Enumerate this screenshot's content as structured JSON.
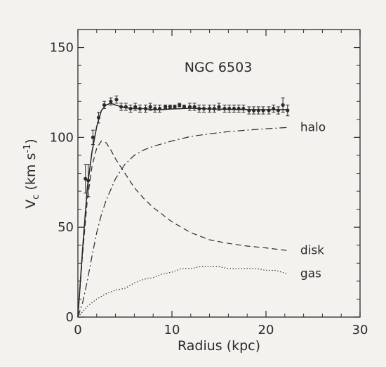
{
  "colors": {
    "ink": "#2b2b2b",
    "background": "#f4f2ef"
  },
  "chart_data": {
    "type": "line",
    "title": "NGC 6503",
    "xlabel": "Radius (kpc)",
    "ylabel": {
      "v": "V",
      "sub": "c",
      "units": " (km s",
      "exp": "-1",
      "close": ")"
    },
    "xlim": [
      0,
      30
    ],
    "ylim": [
      0,
      160
    ],
    "xticks": [
      0,
      10,
      20,
      30
    ],
    "yticks": [
      0,
      50,
      100,
      150
    ],
    "grid": false,
    "observed": {
      "x": [
        0.8,
        1.1,
        1.6,
        2.2,
        2.8,
        3.5,
        4.1,
        4.6,
        5.1,
        5.6,
        6.1,
        6.6,
        7.2,
        7.7,
        8.2,
        8.7,
        9.3,
        9.8,
        10.3,
        10.8,
        11.3,
        11.9,
        12.4,
        12.9,
        13.4,
        14.0,
        14.5,
        15.0,
        15.6,
        16.1,
        16.6,
        17.1,
        17.6,
        18.2,
        18.7,
        19.2,
        19.7,
        20.3,
        20.8,
        21.3,
        21.8,
        22.3
      ],
      "y": [
        77,
        76,
        100,
        111,
        118,
        120,
        121,
        117,
        117,
        116,
        117,
        116,
        116,
        117,
        116,
        116,
        117,
        117,
        117,
        118,
        117,
        117,
        117,
        116,
        116,
        116,
        116,
        117,
        116,
        116,
        116,
        116,
        116,
        115,
        115,
        115,
        115,
        115,
        116,
        115,
        118,
        115
      ],
      "err": [
        8,
        9,
        4,
        3,
        2,
        2,
        2,
        2,
        2,
        2,
        2,
        2,
        2,
        2,
        2,
        2,
        1,
        1,
        1,
        1,
        1,
        2,
        2,
        2,
        2,
        2,
        2,
        2,
        2,
        2,
        2,
        2,
        2,
        2,
        2,
        2,
        2,
        2,
        2,
        2,
        4,
        3
      ]
    },
    "series": [
      {
        "name": "total",
        "style": "solid",
        "x": [
          0,
          0.5,
          1,
          1.5,
          2,
          2.5,
          3,
          3.5,
          4,
          5,
          6,
          7,
          8,
          9,
          10,
          11,
          12,
          13,
          14,
          15,
          16,
          17,
          18,
          19,
          20,
          21,
          22.3
        ],
        "y": [
          0,
          38,
          72,
          92,
          106,
          115,
          118,
          119,
          118,
          116.5,
          116,
          116,
          115.5,
          115.5,
          115.8,
          116,
          116.2,
          116,
          115.8,
          115.7,
          115.6,
          115.5,
          115.5,
          115.4,
          115.4,
          115.4,
          115.5
        ]
      },
      {
        "name": "halo",
        "style": "dashdot",
        "x": [
          0,
          0.5,
          1,
          1.5,
          2,
          2.5,
          3,
          4,
          5,
          6,
          7,
          8,
          10,
          12,
          14,
          16,
          18,
          20,
          22.3
        ],
        "y": [
          0,
          8,
          20,
          34,
          47,
          57,
          65,
          77,
          85,
          90,
          93,
          95,
          98,
          100.5,
          102,
          103.2,
          104,
          104.8,
          105.5
        ]
      },
      {
        "name": "disk",
        "style": "dashed",
        "x": [
          0,
          0.5,
          1,
          1.5,
          2,
          2.5,
          3,
          3.5,
          4,
          5,
          6,
          7,
          8,
          10,
          12,
          14,
          16,
          18,
          20,
          22.3
        ],
        "y": [
          0,
          35,
          65,
          84,
          94,
          98,
          97,
          93,
          88,
          80,
          72,
          66,
          61,
          53,
          47,
          43,
          41,
          39.5,
          38.5,
          37
        ]
      },
      {
        "name": "gas",
        "style": "dotted",
        "x": [
          0,
          0.5,
          1,
          2,
          3,
          4,
          5,
          6,
          7,
          8,
          9,
          10,
          11,
          12,
          13,
          14,
          15,
          16,
          17,
          18,
          19,
          20,
          21,
          22.3
        ],
        "y": [
          0,
          3,
          6,
          10,
          13,
          15,
          16,
          19,
          21,
          22,
          24,
          25,
          27,
          27,
          28,
          28,
          28,
          27,
          27,
          27,
          27,
          26,
          26,
          24
        ]
      }
    ],
    "labels": [
      {
        "text": "halo",
        "series": "halo"
      },
      {
        "text": "disk",
        "series": "disk"
      },
      {
        "text": "gas",
        "series": "gas"
      }
    ]
  }
}
